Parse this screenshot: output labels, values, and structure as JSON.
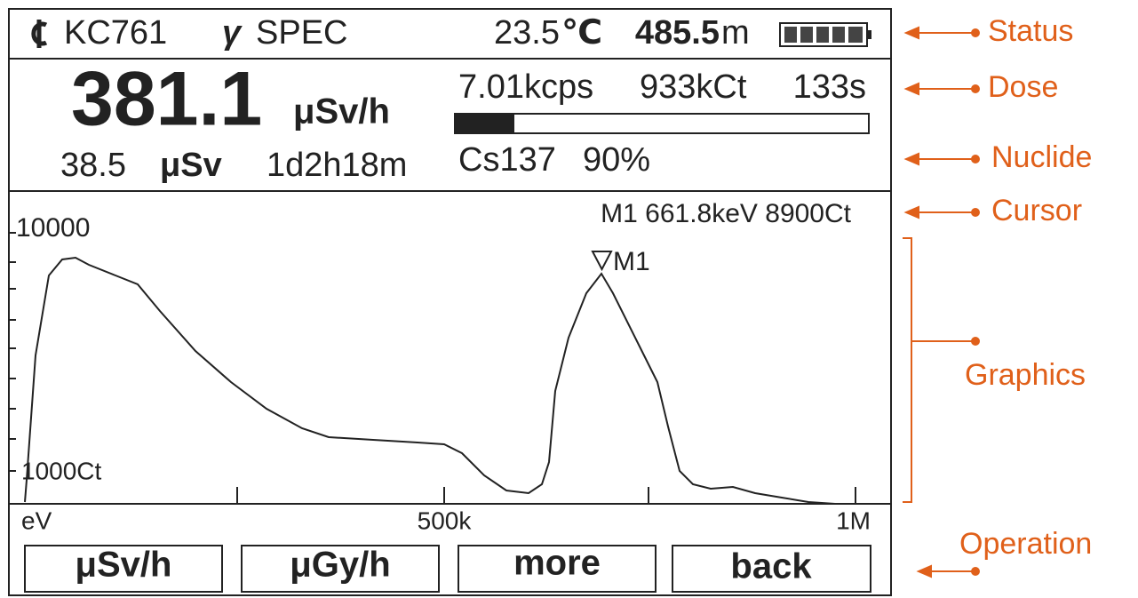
{
  "status": {
    "gamma": "γ",
    "device": "KC761",
    "mode": "SPEC",
    "temperature": "23.5",
    "temperature_unit": "℃",
    "altitude": "485.5",
    "altitude_unit": "m"
  },
  "dose": {
    "rate": "381.1",
    "rate_unit": "μSv/h",
    "total": "38.5",
    "total_unit": "μSv",
    "duration": "1d2h18m",
    "count_rate": "7.01kcps",
    "counts": "933kCt",
    "time": "133s"
  },
  "nuclide": {
    "name": "Cs137",
    "confidence": "90%"
  },
  "cursor": {
    "readout": "M1 661.8keV 8900Ct",
    "marker": "M1"
  },
  "graphics": {
    "y_top": "10000",
    "y_bottom": "1000Ct",
    "x_left": "eV",
    "x_mid": "500k",
    "x_right": "1M"
  },
  "buttons": [
    "μSv/h",
    "μGy/h",
    "more",
    "back"
  ],
  "annotations": [
    "Status",
    "Dose",
    "Nuclide",
    "Cursor",
    "Graphics",
    "Operation"
  ]
}
